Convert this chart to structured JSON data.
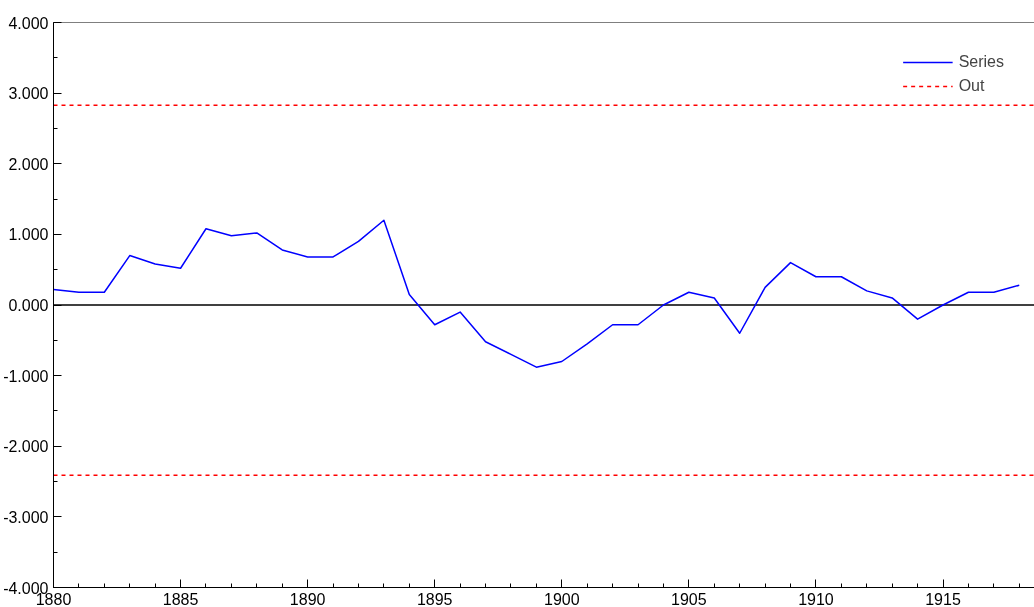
{
  "chart_data": {
    "type": "line",
    "x": [
      1880,
      1881,
      1882,
      1883,
      1884,
      1885,
      1886,
      1887,
      1888,
      1889,
      1890,
      1891,
      1892,
      1893,
      1894,
      1895,
      1896,
      1897,
      1898,
      1899,
      1900,
      1901,
      1902,
      1903,
      1904,
      1905,
      1906,
      1907,
      1908,
      1909,
      1910,
      1911,
      1912,
      1913,
      1914,
      1915,
      1916,
      1917,
      1918
    ],
    "series": [
      {
        "name": "Series",
        "color": "#0000ff",
        "values": [
          0.22,
          0.18,
          0.18,
          0.7,
          0.58,
          0.52,
          1.08,
          0.98,
          1.02,
          0.78,
          0.68,
          0.68,
          0.9,
          1.2,
          0.15,
          -0.28,
          -0.1,
          -0.52,
          -0.7,
          -0.88,
          -0.8,
          -0.55,
          -0.28,
          -0.28,
          0.0,
          0.18,
          0.1,
          -0.4,
          0.25,
          0.6,
          0.4,
          0.4,
          0.2,
          0.1,
          -0.2,
          0.0,
          0.18,
          0.18,
          0.28
        ]
      }
    ],
    "xlim": [
      1880,
      1918.6
    ],
    "xticks": [
      1880,
      1885,
      1890,
      1895,
      1900,
      1905,
      1910,
      1915
    ],
    "ylim": [
      -4,
      4
    ],
    "yticks": [
      {
        "value": -4,
        "label": "-4.000"
      },
      {
        "value": -3,
        "label": "-3.000"
      },
      {
        "value": -2,
        "label": "-2.000"
      },
      {
        "value": -1,
        "label": "-1.000"
      },
      {
        "value": 0,
        "label": "0.000"
      },
      {
        "value": 1,
        "label": "1.000"
      },
      {
        "value": 2,
        "label": "2.000"
      },
      {
        "value": 3,
        "label": "3.000"
      },
      {
        "value": 4,
        "label": "4.000"
      }
    ],
    "ref_lines": [
      {
        "axis": "y",
        "value": 2.83,
        "label": "Out",
        "color": "#ff0000",
        "line_style": "dashed"
      },
      {
        "axis": "y",
        "value": -2.41,
        "color": "#ff0000",
        "line_style": "dashed"
      },
      {
        "axis": "y",
        "value": 0,
        "color": "#000000",
        "line_style": "solid"
      }
    ],
    "grid": false,
    "legend": "top right",
    "marker": "none",
    "line_style": "solid"
  }
}
